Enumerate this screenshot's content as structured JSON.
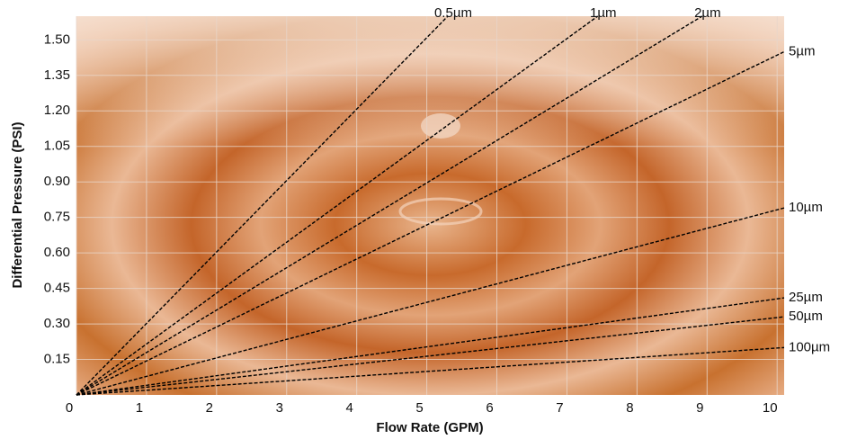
{
  "chart_data": {
    "type": "line",
    "xlabel": "Flow Rate (GPM)",
    "ylabel": "Differential Pressure (PSI)",
    "xlim": [
      0,
      10.1
    ],
    "ylim": [
      0,
      1.6
    ],
    "xticks": [
      0,
      1,
      2,
      3,
      4,
      5,
      6,
      7,
      8,
      9,
      10
    ],
    "yticks": [
      0.15,
      {
        "value": 0.3,
        "label": "0.30"
      },
      0.45,
      {
        "value": 0.6,
        "label": "0.60"
      },
      0.75,
      {
        "value": 0.9,
        "label": "0.90"
      },
      1.05,
      {
        "value": 1.2,
        "label": "1.20"
      },
      1.35,
      {
        "value": 1.5,
        "label": "1.50"
      }
    ],
    "grid": true,
    "series": [
      {
        "name": "0.5µm",
        "color": "#000000",
        "x": [
          0,
          5.3
        ],
        "values": [
          0,
          1.6
        ]
      },
      {
        "name": "1µm",
        "color": "#000000",
        "x": [
          0,
          7.44
        ],
        "values": [
          0,
          1.6
        ]
      },
      {
        "name": "2µm",
        "color": "#000000",
        "x": [
          0,
          8.93
        ],
        "values": [
          0,
          1.6
        ]
      },
      {
        "name": "5µm",
        "color": "#000000",
        "x": [
          0,
          10.1
        ],
        "values": [
          0,
          1.45
        ]
      },
      {
        "name": "10µm",
        "color": "#000000",
        "x": [
          0,
          10.1
        ],
        "values": [
          0,
          0.79
        ]
      },
      {
        "name": "25µm",
        "color": "#000000",
        "x": [
          0,
          10.1
        ],
        "values": [
          0,
          0.41
        ]
      },
      {
        "name": "50µm",
        "color": "#000000",
        "x": [
          0,
          10.1
        ],
        "values": [
          0,
          0.33
        ]
      },
      {
        "name": "100µm",
        "color": "#000000",
        "x": [
          0,
          10.1
        ],
        "values": [
          0,
          0.2
        ]
      }
    ]
  }
}
